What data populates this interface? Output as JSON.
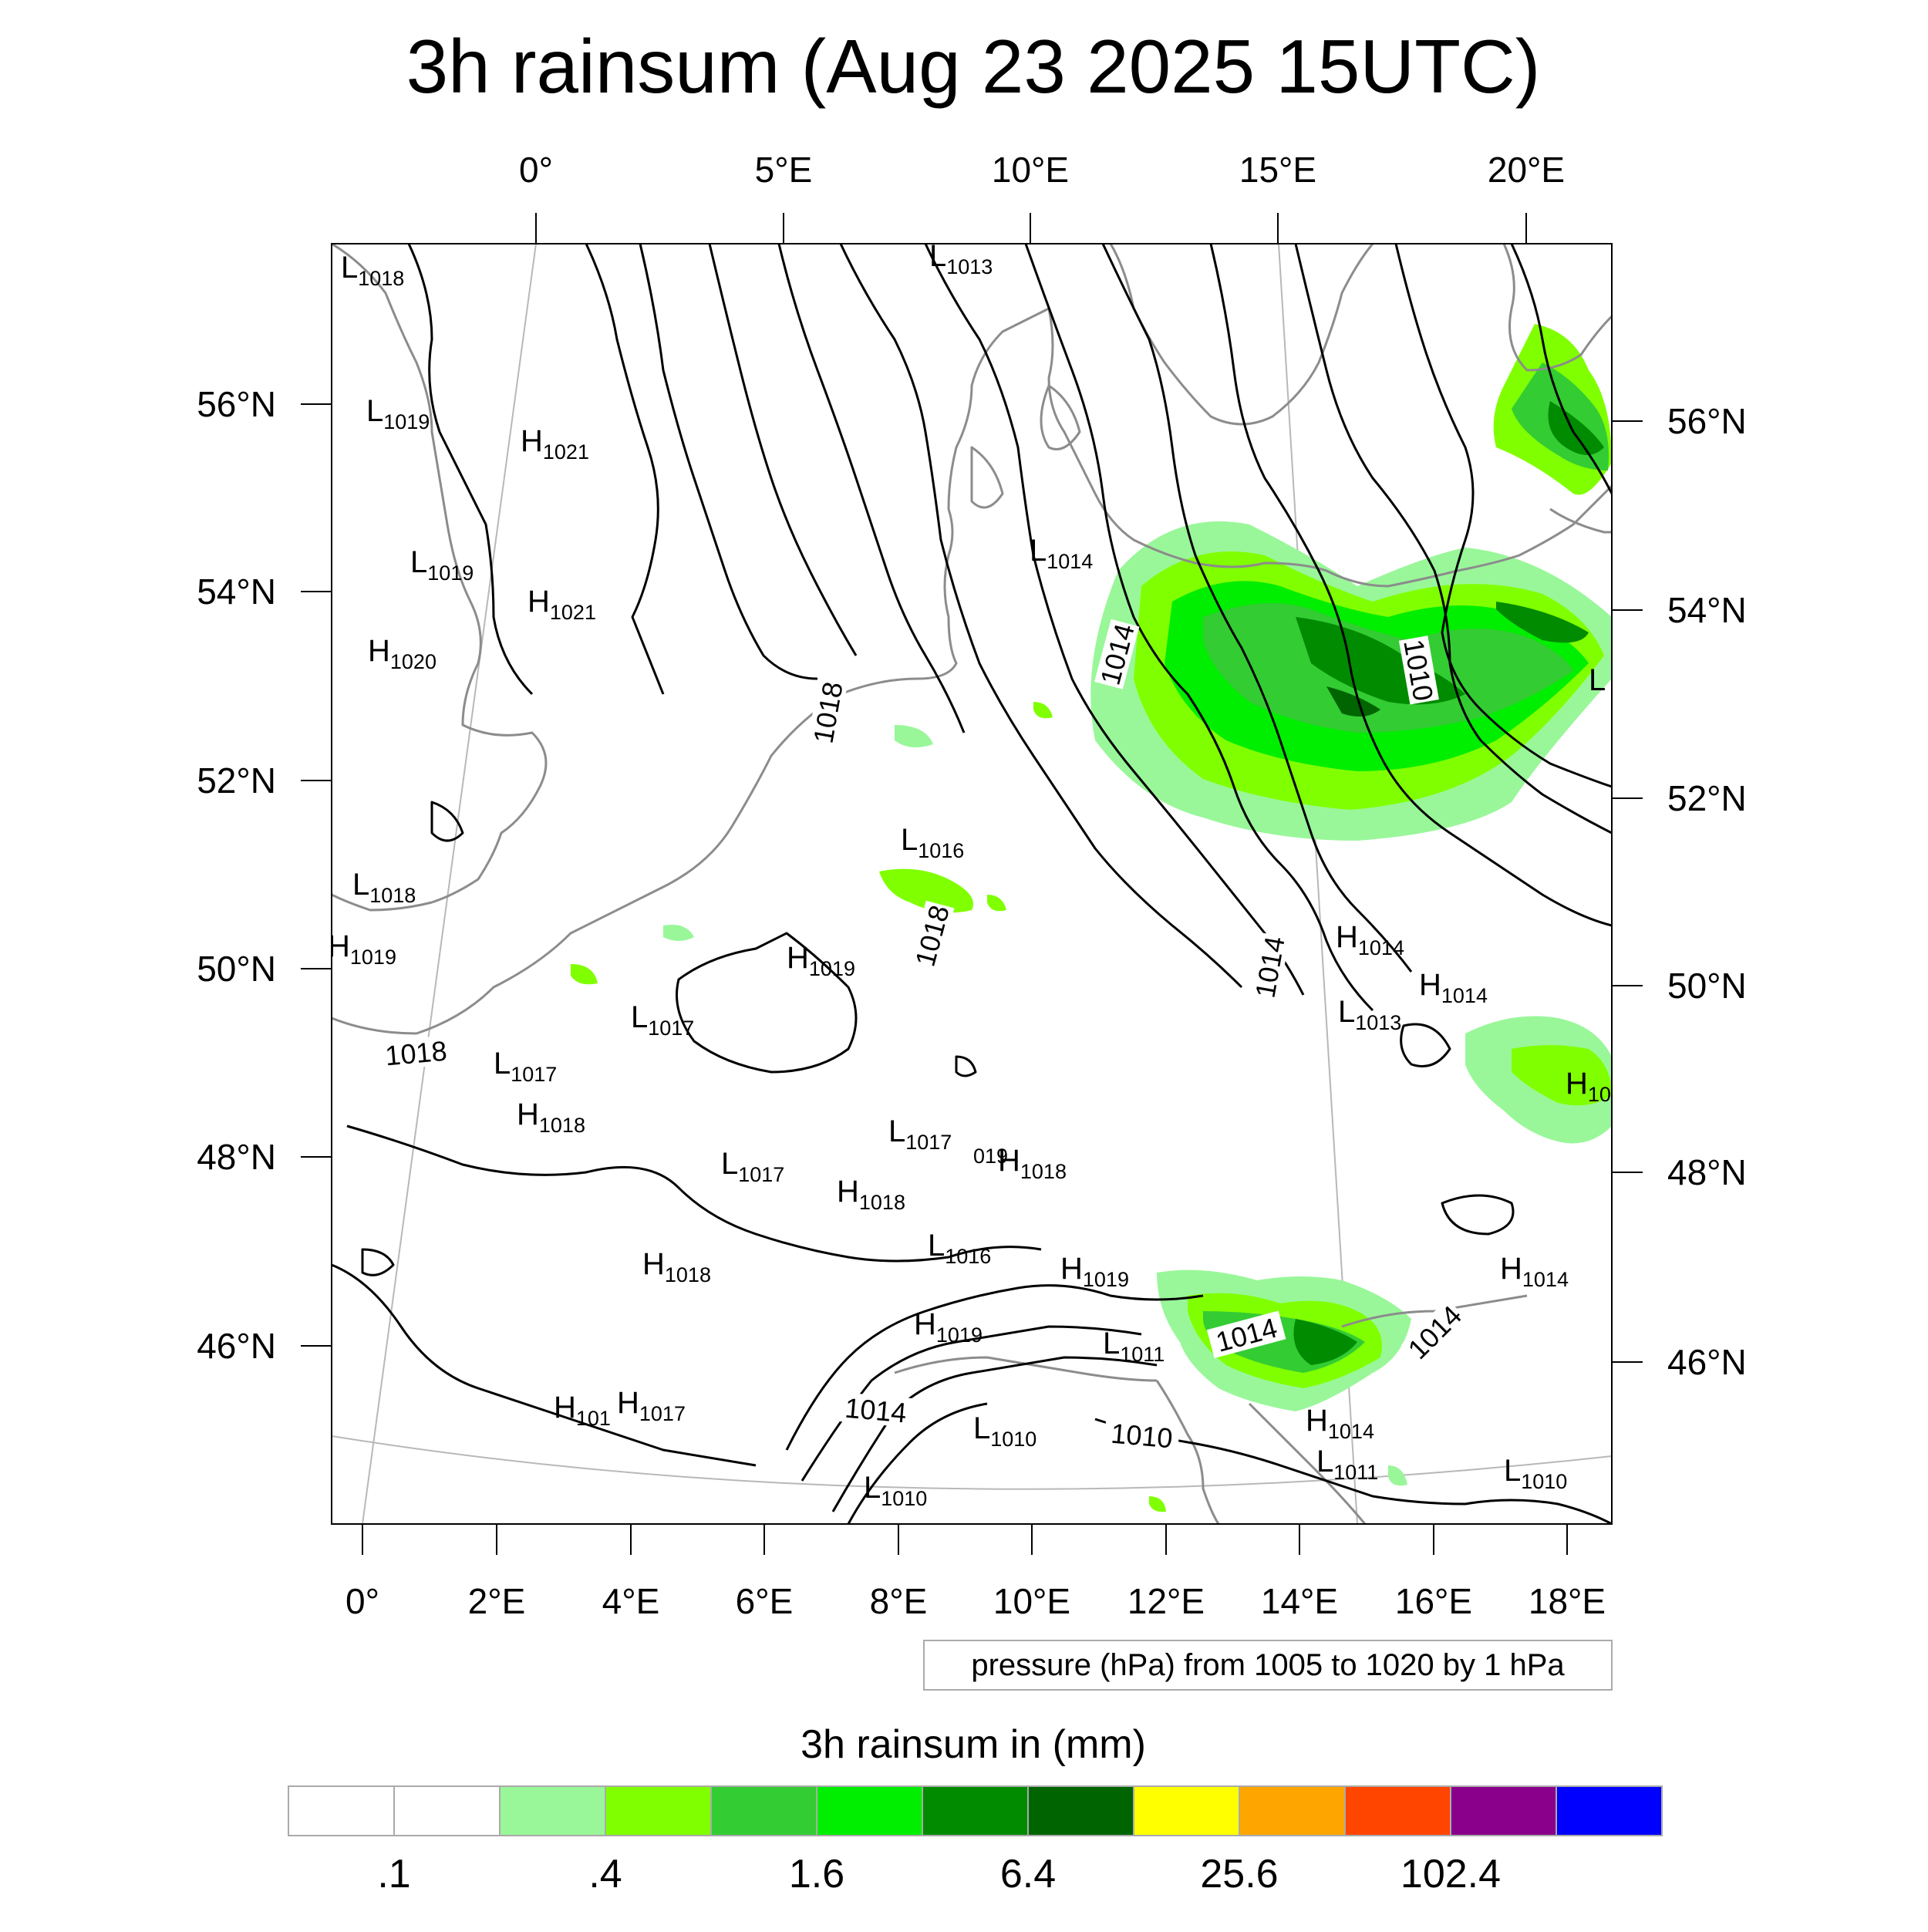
{
  "title": "3h rainsum (Aug 23 2025 15UTC)",
  "axes": {
    "top_lon_labels": [
      "0°",
      "5°E",
      "10°E",
      "15°E",
      "20°E"
    ],
    "bottom_lon_labels": [
      "0°",
      "2°E",
      "4°E",
      "6°E",
      "8°E",
      "10°E",
      "12°E",
      "14°E",
      "16°E",
      "18°E"
    ],
    "left_lat_labels": [
      "56°N",
      "54°N",
      "52°N",
      "50°N",
      "48°N",
      "46°N"
    ],
    "right_lat_labels": [
      "56°N",
      "54°N",
      "52°N",
      "50°N",
      "48°N",
      "46°N"
    ]
  },
  "contour_note": "pressure (hPa) from 1005 to 1020 by 1 hPa",
  "contour_labels": [
    {
      "text": "1018",
      "near": "Netherlands coast"
    },
    {
      "text": "1014",
      "near": "Poland west"
    },
    {
      "text": "1010",
      "near": "Poland east"
    },
    {
      "text": "1018",
      "near": "Germany central"
    },
    {
      "text": "1014",
      "near": "Czech border"
    },
    {
      "text": "1018",
      "near": "Northern France"
    },
    {
      "text": "1014",
      "near": "Alps west"
    },
    {
      "text": "1014",
      "near": "Slovenia"
    },
    {
      "text": "1010",
      "near": "Northern Italy"
    },
    {
      "text": "1014",
      "near": "Hungary west"
    }
  ],
  "pressure_centers": [
    {
      "type": "L",
      "value": "1018"
    },
    {
      "type": "L",
      "value": "1013"
    },
    {
      "type": "L",
      "value": "1019"
    },
    {
      "type": "H",
      "value": "1021"
    },
    {
      "type": "L",
      "value": "1019"
    },
    {
      "type": "H",
      "value": "1021"
    },
    {
      "type": "H",
      "value": "1020"
    },
    {
      "type": "L",
      "value": "1014"
    },
    {
      "type": "L",
      "value": "1016"
    },
    {
      "type": "L",
      "value": "1018"
    },
    {
      "type": "H",
      "value": "1019"
    },
    {
      "type": "H",
      "value": "1019"
    },
    {
      "type": "L",
      "value": "1017"
    },
    {
      "type": "L",
      "value": "1017"
    },
    {
      "type": "H",
      "value": "1018"
    },
    {
      "type": "L",
      "value": "1017"
    },
    {
      "type": "L",
      "value": "1017"
    },
    {
      "type": "H",
      "value": "1018"
    },
    {
      "type": "H",
      "value": "1018"
    },
    {
      "type": "H",
      "value": "1018"
    },
    {
      "type": "L",
      "value": "1016"
    },
    {
      "type": "H",
      "value": "1019"
    },
    {
      "type": "H",
      "value": "1019"
    },
    {
      "type": "L",
      "value": "1011"
    },
    {
      "type": "H",
      "value": "101"
    },
    {
      "type": "H",
      "value": "1017"
    },
    {
      "type": "L",
      "value": "1010"
    },
    {
      "type": "L",
      "value": "1010"
    },
    {
      "type": "H",
      "value": "1014"
    },
    {
      "type": "H",
      "value": "1014"
    },
    {
      "type": "L",
      "value": "1013"
    },
    {
      "type": "H",
      "value": "10"
    },
    {
      "type": "H",
      "value": "1014"
    },
    {
      "type": "H",
      "value": "1014"
    },
    {
      "type": "L",
      "value": "1011"
    },
    {
      "type": "L",
      "value": "1010"
    }
  ],
  "fragment_labels": [
    "019",
    "L"
  ],
  "colorbar": {
    "title": "3h rainsum in (mm)",
    "tick_labels": [
      ".1",
      ".4",
      "1.6",
      "6.4",
      "25.6",
      "102.4"
    ],
    "colors": [
      "#ffffff",
      "#ffffff",
      "#99f799",
      "#80ff00",
      "#33cc33",
      "#00ee00",
      "#008b00",
      "#006400",
      "#ffff00",
      "#ffa500",
      "#ff4500",
      "#8b008b",
      "#0000ff"
    ]
  }
}
